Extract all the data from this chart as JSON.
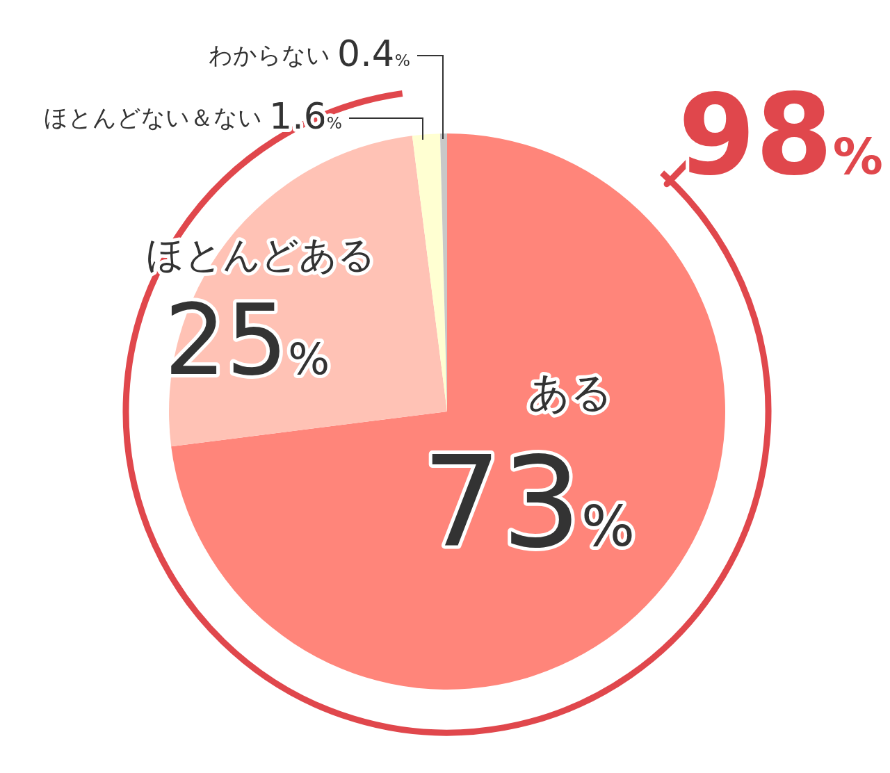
{
  "chart_data": {
    "type": "pie",
    "categories": [
      "ある",
      "ほとんどある",
      "ほとんどない＆ない",
      "わからない"
    ],
    "values": [
      73,
      25,
      1.6,
      0.4
    ],
    "colors": [
      "#ff857a",
      "#ffc2b5",
      "#ffffd2",
      "#c8c8c8"
    ],
    "value_labels": [
      "73%",
      "25%",
      "1.6%",
      "0.4%"
    ],
    "annotations": [
      "98%"
    ]
  }
}
